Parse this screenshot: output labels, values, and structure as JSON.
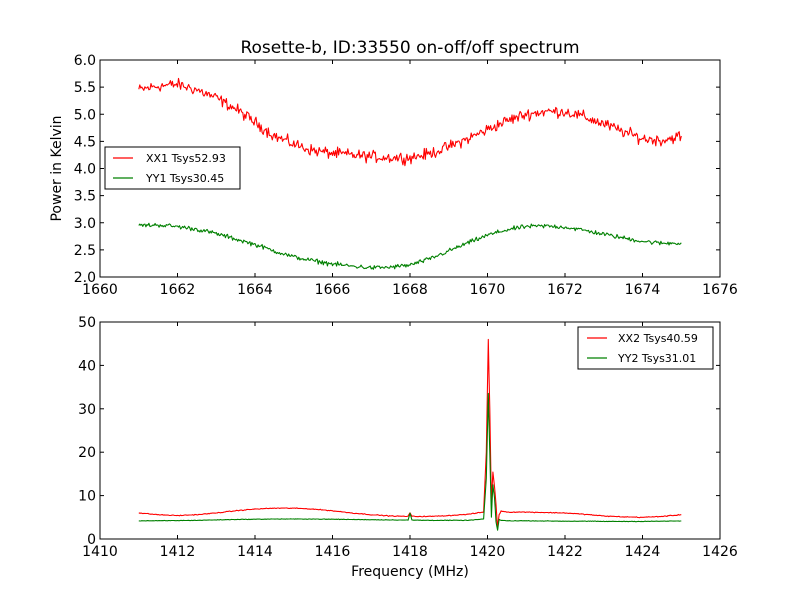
{
  "figure_title": "Rosette-b, ID:33550 on-off/off spectrum",
  "chart_data": [
    {
      "type": "line",
      "title": "Rosette-b, ID:33550 on-off/off spectrum",
      "xlabel": "",
      "ylabel": "Power in Kelvin",
      "xlim": [
        1660,
        1676
      ],
      "ylim": [
        2.0,
        6.0
      ],
      "xticks": [
        "1660",
        "1662",
        "1664",
        "1666",
        "1668",
        "1670",
        "1672",
        "1674",
        "1676"
      ],
      "xtick_values": [
        1660,
        1662,
        1664,
        1666,
        1668,
        1670,
        1672,
        1674,
        1676
      ],
      "yticks": [
        "2.0",
        "2.5",
        "3.0",
        "3.5",
        "4.0",
        "4.5",
        "5.0",
        "5.5",
        "6.0"
      ],
      "ytick_values": [
        2.0,
        2.5,
        3.0,
        3.5,
        4.0,
        4.5,
        5.0,
        5.5,
        6.0
      ],
      "grid": false,
      "legend_position": "center-left",
      "series": [
        {
          "name": "XX1 Tsys52.93",
          "color": "#ff0000",
          "noise": 0.09,
          "x": [
            1661.0,
            1661.5,
            1662.0,
            1662.5,
            1663.0,
            1663.5,
            1664.0,
            1664.5,
            1665.0,
            1665.5,
            1666.0,
            1666.5,
            1667.0,
            1667.5,
            1668.0,
            1668.5,
            1669.0,
            1669.5,
            1670.0,
            1670.5,
            1671.0,
            1671.5,
            1672.0,
            1672.5,
            1673.0,
            1673.5,
            1674.0,
            1674.5,
            1675.0
          ],
          "y": [
            5.45,
            5.52,
            5.55,
            5.45,
            5.3,
            5.1,
            4.85,
            4.6,
            4.45,
            4.33,
            4.28,
            4.25,
            4.22,
            4.2,
            4.2,
            4.27,
            4.4,
            4.55,
            4.72,
            4.88,
            5.0,
            5.05,
            5.05,
            4.95,
            4.82,
            4.68,
            4.55,
            4.52,
            4.6
          ]
        },
        {
          "name": "YY1 Tsys30.45",
          "color": "#008000",
          "noise": 0.035,
          "x": [
            1661.0,
            1661.5,
            1662.0,
            1662.5,
            1663.0,
            1663.5,
            1664.0,
            1664.5,
            1665.0,
            1665.5,
            1666.0,
            1666.5,
            1667.0,
            1667.5,
            1668.0,
            1668.5,
            1669.0,
            1669.5,
            1670.0,
            1670.5,
            1671.0,
            1671.5,
            1672.0,
            1672.5,
            1673.0,
            1673.5,
            1674.0,
            1674.5,
            1675.0
          ],
          "y": [
            2.95,
            2.96,
            2.93,
            2.88,
            2.8,
            2.7,
            2.6,
            2.48,
            2.37,
            2.3,
            2.24,
            2.2,
            2.17,
            2.18,
            2.22,
            2.33,
            2.48,
            2.63,
            2.77,
            2.87,
            2.93,
            2.94,
            2.92,
            2.86,
            2.79,
            2.72,
            2.66,
            2.62,
            2.63
          ]
        }
      ]
    },
    {
      "type": "line",
      "title": "",
      "xlabel": "Frequency (MHz)",
      "ylabel": "",
      "xlim": [
        1410,
        1426
      ],
      "ylim": [
        0,
        50
      ],
      "xticks": [
        "1410",
        "1412",
        "1414",
        "1416",
        "1418",
        "1420",
        "1422",
        "1424",
        "1426"
      ],
      "xtick_values": [
        1410,
        1412,
        1414,
        1416,
        1418,
        1420,
        1422,
        1424,
        1426
      ],
      "yticks": [
        "0",
        "10",
        "20",
        "30",
        "40",
        "50"
      ],
      "ytick_values": [
        0,
        10,
        20,
        30,
        40,
        50
      ],
      "grid": false,
      "legend_position": "top-right",
      "series": [
        {
          "name": "XX2 Tsys40.59",
          "color": "#ff0000",
          "noise": 0.08,
          "x": [
            1411.0,
            1411.5,
            1412.0,
            1412.5,
            1413.0,
            1413.5,
            1414.0,
            1414.5,
            1415.0,
            1415.5,
            1416.0,
            1416.5,
            1417.0,
            1417.5,
            1417.95,
            1418.0,
            1418.05,
            1418.5,
            1419.0,
            1419.5,
            1419.9,
            1419.97,
            1420.02,
            1420.06,
            1420.1,
            1420.14,
            1420.18,
            1420.22,
            1420.26,
            1420.3,
            1420.35,
            1420.5,
            1421.0,
            1421.5,
            1422.0,
            1422.5,
            1423.0,
            1423.5,
            1424.0,
            1424.5,
            1425.0
          ],
          "y": [
            6.0,
            5.6,
            5.4,
            5.6,
            6.0,
            6.5,
            6.9,
            7.1,
            7.1,
            6.9,
            6.5,
            6.0,
            5.6,
            5.3,
            5.2,
            6.1,
            5.2,
            5.2,
            5.4,
            5.7,
            6.2,
            20.0,
            46.0,
            30.0,
            8.0,
            15.5,
            12.0,
            8.0,
            2.5,
            5.5,
            6.5,
            6.2,
            6.2,
            6.1,
            6.0,
            5.7,
            5.3,
            5.1,
            5.0,
            5.2,
            5.6
          ]
        },
        {
          "name": "YY2 Tsys31.01",
          "color": "#008000",
          "noise": 0.05,
          "x": [
            1411.0,
            1411.5,
            1412.0,
            1412.5,
            1413.0,
            1413.5,
            1414.0,
            1414.5,
            1415.0,
            1415.5,
            1416.0,
            1416.5,
            1417.0,
            1417.5,
            1417.95,
            1418.0,
            1418.05,
            1418.5,
            1419.0,
            1419.5,
            1419.9,
            1419.97,
            1420.02,
            1420.06,
            1420.1,
            1420.14,
            1420.18,
            1420.22,
            1420.26,
            1420.3,
            1420.35,
            1420.5,
            1421.0,
            1421.5,
            1422.0,
            1422.5,
            1423.0,
            1423.5,
            1424.0,
            1424.5,
            1425.0
          ],
          "y": [
            4.2,
            4.2,
            4.25,
            4.3,
            4.4,
            4.5,
            4.55,
            4.6,
            4.6,
            4.6,
            4.55,
            4.5,
            4.45,
            4.4,
            4.35,
            5.9,
            4.35,
            4.3,
            4.3,
            4.3,
            4.6,
            14.0,
            33.5,
            20.0,
            5.0,
            12.5,
            9.5,
            4.0,
            2.0,
            4.5,
            4.3,
            4.2,
            4.2,
            4.15,
            4.1,
            4.1,
            4.05,
            4.05,
            4.05,
            4.1,
            4.15
          ]
        }
      ]
    }
  ]
}
